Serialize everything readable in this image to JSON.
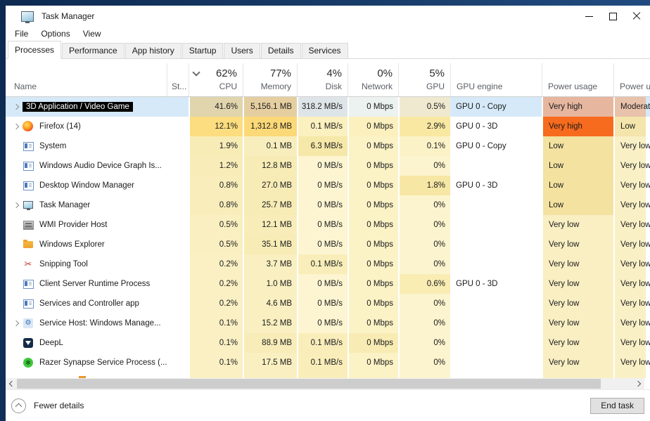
{
  "window": {
    "title": "Task Manager"
  },
  "menu": [
    {
      "label": "File"
    },
    {
      "label": "Options"
    },
    {
      "label": "View"
    }
  ],
  "tabs": [
    {
      "label": "Processes",
      "active": true
    },
    {
      "label": "Performance",
      "active": false
    },
    {
      "label": "App history",
      "active": false
    },
    {
      "label": "Startup",
      "active": false
    },
    {
      "label": "Users",
      "active": false
    },
    {
      "label": "Details",
      "active": false
    },
    {
      "label": "Services",
      "active": false
    }
  ],
  "header": {
    "name": "Name",
    "status": "St...",
    "metrics": [
      {
        "id": "cpu",
        "pct": "62%",
        "label": "CPU",
        "sorted": true
      },
      {
        "id": "memory",
        "pct": "77%",
        "label": "Memory",
        "sorted": false
      },
      {
        "id": "disk",
        "pct": "4%",
        "label": "Disk",
        "sorted": false
      },
      {
        "id": "network",
        "pct": "0%",
        "label": "Network",
        "sorted": false
      },
      {
        "id": "gpu",
        "pct": "5%",
        "label": "GPU",
        "sorted": false
      }
    ],
    "gpu_engine": "GPU engine",
    "power_usage": "Power usage",
    "power_usage_trend": "Power u..."
  },
  "processes": [
    {
      "name": "3D Application / Video Game",
      "icon": null,
      "name_style": "inverted",
      "expandable": true,
      "selected": true,
      "partial": false,
      "status": "",
      "cpu": "41.6%",
      "memory": "5,156.1 MB",
      "disk": "318.2 MB/s",
      "network": "0 Mbps",
      "gpu": "0.5%",
      "gpu_engine": "GPU 0 - Copy",
      "power_usage": "Very high",
      "power_usage_trend": "Moderate",
      "heat": {
        "cpu": "#e0d5ad",
        "memory": "#e5cfa0",
        "disk": "#dee5e8",
        "network": "#ebf2ef",
        "gpu": "#efe9d0",
        "power": "#e6b69f",
        "trend": "#e9c2ab"
      }
    },
    {
      "name": "Firefox (14)",
      "icon": "firefox",
      "name_style": "normal",
      "expandable": true,
      "selected": false,
      "partial": false,
      "status": "",
      "cpu": "12.1%",
      "memory": "1,312.8 MB",
      "disk": "0.1 MB/s",
      "network": "0 Mbps",
      "gpu": "2.9%",
      "gpu_engine": "GPU 0 - 3D",
      "power_usage": "Very high",
      "power_usage_trend": "Low",
      "heat": {
        "cpu": "#fcdd7f",
        "memory": "#fcd978",
        "disk": "#fbf0bf",
        "network": "#fbf0be",
        "gpu": "#f8e8a2",
        "power": "#f76b1e",
        "trend": "#f3e5ab"
      }
    },
    {
      "name": "System",
      "icon": "exe",
      "name_style": "normal",
      "expandable": false,
      "selected": false,
      "partial": false,
      "status": "",
      "cpu": "1.9%",
      "memory": "0.1 MB",
      "disk": "6.3 MB/s",
      "network": "0 Mbps",
      "gpu": "0.1%",
      "gpu_engine": "GPU 0 - Copy",
      "power_usage": "Low",
      "power_usage_trend": "Very low",
      "heat": {
        "cpu": "#f7ecb6",
        "memory": "#f8eebd",
        "disk": "#f6e8a8",
        "network": "#fbf2c6",
        "gpu": "#fbf2c8",
        "power": "#f3e2a0",
        "trend": "#f9f0c6"
      }
    },
    {
      "name": "Windows Audio Device Graph Is...",
      "icon": "exe",
      "name_style": "normal",
      "expandable": false,
      "selected": false,
      "partial": false,
      "status": "",
      "cpu": "1.2%",
      "memory": "12.8 MB",
      "disk": "0 MB/s",
      "network": "0 Mbps",
      "gpu": "0%",
      "gpu_engine": "",
      "power_usage": "Low",
      "power_usage_trend": "Very low",
      "heat": {
        "cpu": "#f8edb9",
        "memory": "#f7ecb6",
        "disk": "#fdf5d1",
        "network": "#fbf2c6",
        "gpu": "#fcf4ce",
        "power": "#f3e2a0",
        "trend": "#f9f0c6"
      }
    },
    {
      "name": "Desktop Window Manager",
      "icon": "exe",
      "name_style": "normal",
      "expandable": false,
      "selected": false,
      "partial": false,
      "status": "",
      "cpu": "0.8%",
      "memory": "27.0 MB",
      "disk": "0 MB/s",
      "network": "0 Mbps",
      "gpu": "1.8%",
      "gpu_engine": "GPU 0 - 3D",
      "power_usage": "Low",
      "power_usage_trend": "Very low",
      "heat": {
        "cpu": "#f8edbb",
        "memory": "#f7ecb6",
        "disk": "#fdf5d1",
        "network": "#fbf2c6",
        "gpu": "#f6e7a4",
        "power": "#f3e2a0",
        "trend": "#f9f0c6"
      }
    },
    {
      "name": "Task Manager",
      "icon": "taskmgr",
      "name_style": "normal",
      "expandable": true,
      "selected": false,
      "partial": false,
      "status": "",
      "cpu": "0.8%",
      "memory": "25.7 MB",
      "disk": "0 MB/s",
      "network": "0 Mbps",
      "gpu": "0%",
      "gpu_engine": "",
      "power_usage": "Low",
      "power_usage_trend": "Very low",
      "heat": {
        "cpu": "#f8edbb",
        "memory": "#f7ecb6",
        "disk": "#fdf5d1",
        "network": "#fbf2c6",
        "gpu": "#fcf4ce",
        "power": "#f3e2a0",
        "trend": "#f9f0c6"
      }
    },
    {
      "name": "WMI Provider Host",
      "icon": "wmi",
      "name_style": "normal",
      "expandable": false,
      "selected": false,
      "partial": false,
      "status": "",
      "cpu": "0.5%",
      "memory": "12.1 MB",
      "disk": "0 MB/s",
      "network": "0 Mbps",
      "gpu": "0%",
      "gpu_engine": "",
      "power_usage": "Very low",
      "power_usage_trend": "Very low",
      "heat": {
        "cpu": "#f9efc0",
        "memory": "#f8edb9",
        "disk": "#fdf5d1",
        "network": "#fbf2c6",
        "gpu": "#fcf4ce",
        "power": "#f9efc3",
        "trend": "#f9f0c6"
      }
    },
    {
      "name": "Windows Explorer",
      "icon": "folder",
      "name_style": "normal",
      "expandable": false,
      "selected": false,
      "partial": false,
      "status": "",
      "cpu": "0.5%",
      "memory": "35.1 MB",
      "disk": "0 MB/s",
      "network": "0 Mbps",
      "gpu": "0%",
      "gpu_engine": "",
      "power_usage": "Very low",
      "power_usage_trend": "Very low",
      "heat": {
        "cpu": "#f9efc0",
        "memory": "#f7ecb6",
        "disk": "#fdf5d1",
        "network": "#fbf2c6",
        "gpu": "#fcf4ce",
        "power": "#f9efc3",
        "trend": "#f9f0c6"
      }
    },
    {
      "name": "Snipping Tool",
      "icon": "snip",
      "name_style": "normal",
      "expandable": false,
      "selected": false,
      "partial": false,
      "status": "",
      "cpu": "0.2%",
      "memory": "3.7 MB",
      "disk": "0.1 MB/s",
      "network": "0 Mbps",
      "gpu": "0%",
      "gpu_engine": "",
      "power_usage": "Very low",
      "power_usage_trend": "Very low",
      "heat": {
        "cpu": "#faf0c4",
        "memory": "#f9efc0",
        "disk": "#f9eeba",
        "network": "#fbf2c6",
        "gpu": "#fcf4ce",
        "power": "#f9efc3",
        "trend": "#f9f0c6"
      }
    },
    {
      "name": "Client Server Runtime Process",
      "icon": "exe",
      "name_style": "normal",
      "expandable": false,
      "selected": false,
      "partial": false,
      "status": "",
      "cpu": "0.2%",
      "memory": "1.0 MB",
      "disk": "0 MB/s",
      "network": "0 Mbps",
      "gpu": "0.6%",
      "gpu_engine": "GPU 0 - 3D",
      "power_usage": "Very low",
      "power_usage_trend": "Very low",
      "heat": {
        "cpu": "#faf0c4",
        "memory": "#f9efc0",
        "disk": "#fdf5d1",
        "network": "#fbf2c6",
        "gpu": "#f9edb4",
        "power": "#f9efc3",
        "trend": "#f9f0c6"
      }
    },
    {
      "name": "Services and Controller app",
      "icon": "exe",
      "name_style": "normal",
      "expandable": false,
      "selected": false,
      "partial": false,
      "status": "",
      "cpu": "0.2%",
      "memory": "4.6 MB",
      "disk": "0 MB/s",
      "network": "0 Mbps",
      "gpu": "0%",
      "gpu_engine": "",
      "power_usage": "Very low",
      "power_usage_trend": "Very low",
      "heat": {
        "cpu": "#faf0c4",
        "memory": "#f9efc0",
        "disk": "#fdf5d1",
        "network": "#fbf2c6",
        "gpu": "#fcf4ce",
        "power": "#f9efc3",
        "trend": "#f9f0c6"
      }
    },
    {
      "name": "Service Host: Windows Manage...",
      "icon": "svchost",
      "name_style": "normal",
      "expandable": true,
      "selected": false,
      "partial": false,
      "status": "",
      "cpu": "0.1%",
      "memory": "15.2 MB",
      "disk": "0 MB/s",
      "network": "0 Mbps",
      "gpu": "0%",
      "gpu_engine": "",
      "power_usage": "Very low",
      "power_usage_trend": "Very low",
      "heat": {
        "cpu": "#faf0c4",
        "memory": "#f9efc0",
        "disk": "#fdf5d1",
        "network": "#fbf2c6",
        "gpu": "#fcf4ce",
        "power": "#f9efc3",
        "trend": "#f9f0c6"
      }
    },
    {
      "name": "DeepL",
      "icon": "deepl",
      "name_style": "normal",
      "expandable": false,
      "selected": false,
      "partial": false,
      "status": "",
      "cpu": "0.1%",
      "memory": "88.9 MB",
      "disk": "0.1 MB/s",
      "network": "0 Mbps",
      "gpu": "0%",
      "gpu_engine": "",
      "power_usage": "Very low",
      "power_usage_trend": "Very low",
      "heat": {
        "cpu": "#faf0c4",
        "memory": "#f8edb9",
        "disk": "#f9eeba",
        "network": "#f8ecb4",
        "gpu": "#fcf4ce",
        "power": "#f9efc3",
        "trend": "#f9f0c6"
      }
    },
    {
      "name": "Razer Synapse Service Process (...",
      "icon": "razer",
      "name_style": "normal",
      "expandable": false,
      "selected": false,
      "partial": false,
      "status": "",
      "cpu": "0.1%",
      "memory": "17.5 MB",
      "disk": "0.1 MB/s",
      "network": "0 Mbps",
      "gpu": "0%",
      "gpu_engine": "",
      "power_usage": "Very low",
      "power_usage_trend": "Very low",
      "heat": {
        "cpu": "#faf0c4",
        "memory": "#f9efc0",
        "disk": "#f9eeba",
        "network": "#fbf2c6",
        "gpu": "#fcf4ce",
        "power": "#f9efc3",
        "trend": "#f9f0c6"
      }
    },
    {
      "name": "",
      "icon": "orange",
      "name_style": "normal",
      "expandable": false,
      "selected": false,
      "partial": true,
      "status": "",
      "cpu": "",
      "memory": "",
      "disk": "",
      "network": "",
      "gpu": "",
      "gpu_engine": "",
      "power_usage": "",
      "power_usage_trend": "",
      "heat": {
        "cpu": "#faf0c4",
        "memory": "#f9efc0",
        "disk": "#f9eeba",
        "network": "#fbf2c6",
        "gpu": "#fcf4ce",
        "power": "#f9efc3",
        "trend": "#f9f0c6"
      }
    }
  ],
  "footer": {
    "fewer_details": "Fewer details",
    "end_task": "End task"
  },
  "colors": {
    "selection": "#d5e9f8",
    "power_very_high": "#f76b1e",
    "power_very_high_selected": "#e6b69f"
  }
}
